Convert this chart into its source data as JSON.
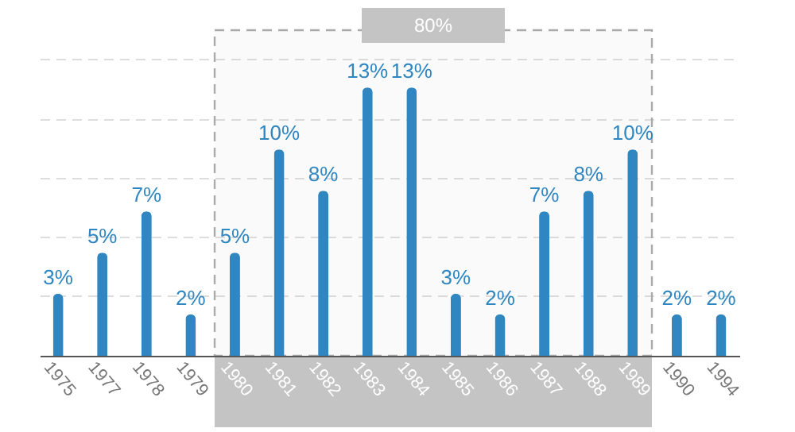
{
  "chart_data": {
    "type": "bar",
    "categories": [
      "1975",
      "1977",
      "1978",
      "1979",
      "1980",
      "1981",
      "1982",
      "1983",
      "1984",
      "1985",
      "1986",
      "1987",
      "1988",
      "1989",
      "1990",
      "1994"
    ],
    "values": [
      3,
      5,
      7,
      2,
      5,
      10,
      8,
      13,
      13,
      3,
      2,
      7,
      8,
      10,
      2,
      2
    ],
    "value_labels": [
      "3%",
      "5%",
      "7%",
      "2%",
      "5%",
      "10%",
      "8%",
      "13%",
      "13%",
      "3%",
      "2%",
      "7%",
      "8%",
      "10%",
      "2%",
      "2%"
    ],
    "color": "#2f86c0",
    "ylim": [
      0,
      14.4
    ],
    "yticks": [
      {
        "value": 2.9,
        "label": null
      },
      {
        "value": 5.8,
        "label": null
      },
      {
        "value": 8.6,
        "label": null
      },
      {
        "value": 11.5,
        "label": null
      },
      {
        "value": 14.4,
        "label": null
      }
    ],
    "grid": "y",
    "tick_labels": "x",
    "bands": [
      {
        "axis": "x",
        "from": "1980",
        "to": "1989",
        "label": "80%",
        "color": "#c4c4c4"
      }
    ]
  }
}
